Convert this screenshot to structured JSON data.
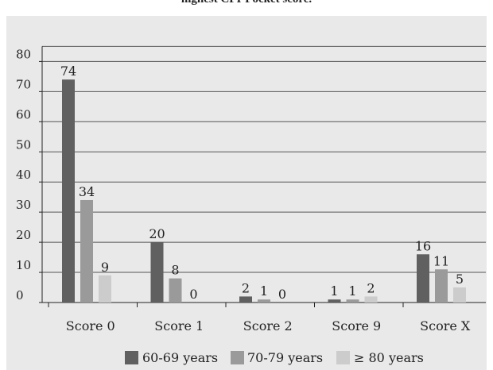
{
  "header": {
    "title": "highest CFI-Pocket score."
  },
  "colors": {
    "panel_background": "#e9e9e9",
    "gridline": "#555555",
    "series": [
      "#606060",
      "#9a9a9a",
      "#cccccc"
    ]
  },
  "chart_data": {
    "type": "bar",
    "title": "highest CFI-Pocket score.",
    "xlabel": "",
    "ylabel": "",
    "ylim": [
      0,
      80
    ],
    "yticks": [
      0,
      10,
      20,
      30,
      40,
      50,
      60,
      70,
      80
    ],
    "grid": true,
    "legend_position": "bottom",
    "categories": [
      "Score 0",
      "Score 1",
      "Score 2",
      "Score 9",
      "Score X"
    ],
    "series": [
      {
        "name": "60-69 years",
        "color": "#606060",
        "values": [
          74,
          20,
          2,
          1,
          16
        ],
        "labels": [
          "74",
          "20",
          "2",
          "1",
          "16"
        ]
      },
      {
        "name": "70-79 years",
        "color": "#9a9a9a",
        "values": [
          34,
          8,
          1,
          1,
          11
        ],
        "labels": [
          "34",
          "8",
          "1",
          "1",
          "11"
        ]
      },
      {
        "name": "≥ 80 years",
        "color": "#cccccc",
        "values": [
          9,
          0,
          0,
          2,
          5
        ],
        "labels": [
          "9",
          "0",
          "0",
          "2",
          "5"
        ]
      }
    ]
  }
}
